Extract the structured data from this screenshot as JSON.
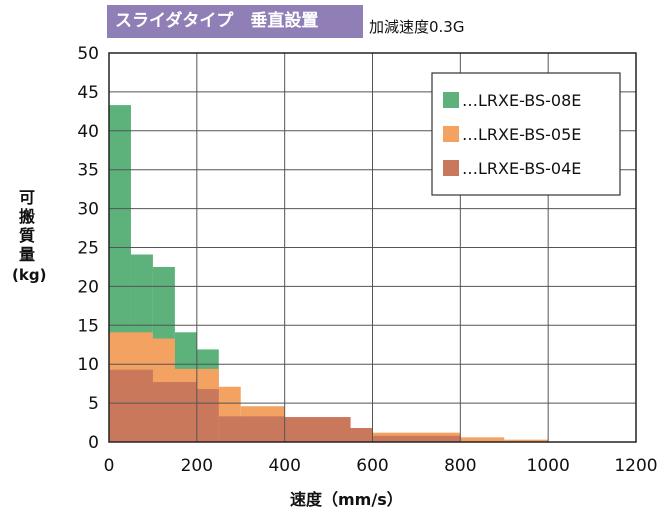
{
  "title": "スライダタイプ　垂直設置",
  "subtitle": "加減速度0.3G",
  "chart_data": {
    "type": "bar",
    "xlabel": "速度（mm/s）",
    "ylabel_chars": [
      "可",
      "搬",
      "質",
      "量"
    ],
    "ylabel_unit": "(kg)",
    "xlim": [
      0,
      1200
    ],
    "ylim": [
      0,
      50
    ],
    "xticks": [
      0,
      200,
      400,
      600,
      800,
      1000,
      1200
    ],
    "yticks": [
      0,
      5,
      10,
      15,
      20,
      25,
      30,
      35,
      40,
      45,
      50
    ],
    "grid": true,
    "legend_position": "top-right",
    "series": [
      {
        "name": "…LRXE-BS-08E",
        "color": "#5db17a",
        "steps": [
          [
            0,
            50,
            43.3
          ],
          [
            50,
            100,
            24.1
          ],
          [
            100,
            150,
            22.5
          ],
          [
            150,
            200,
            14.1
          ],
          [
            200,
            250,
            11.9
          ]
        ]
      },
      {
        "name": "…LRXE-BS-05E",
        "color": "#f4a261",
        "steps": [
          [
            0,
            100,
            14.1
          ],
          [
            100,
            150,
            13.3
          ],
          [
            150,
            250,
            9.4
          ],
          [
            250,
            300,
            7.1
          ],
          [
            300,
            400,
            4.6
          ],
          [
            400,
            550,
            3.2
          ],
          [
            550,
            600,
            1.8
          ],
          [
            600,
            800,
            1.2
          ],
          [
            800,
            900,
            0.6
          ],
          [
            900,
            1000,
            0.3
          ]
        ]
      },
      {
        "name": "…LRXE-BS-04E",
        "color": "#c9785c",
        "steps": [
          [
            0,
            100,
            9.3
          ],
          [
            100,
            200,
            7.7
          ],
          [
            200,
            250,
            6.8
          ],
          [
            250,
            400,
            3.3
          ],
          [
            400,
            550,
            3.2
          ],
          [
            550,
            600,
            1.8
          ],
          [
            600,
            800,
            0.8
          ]
        ]
      }
    ]
  }
}
